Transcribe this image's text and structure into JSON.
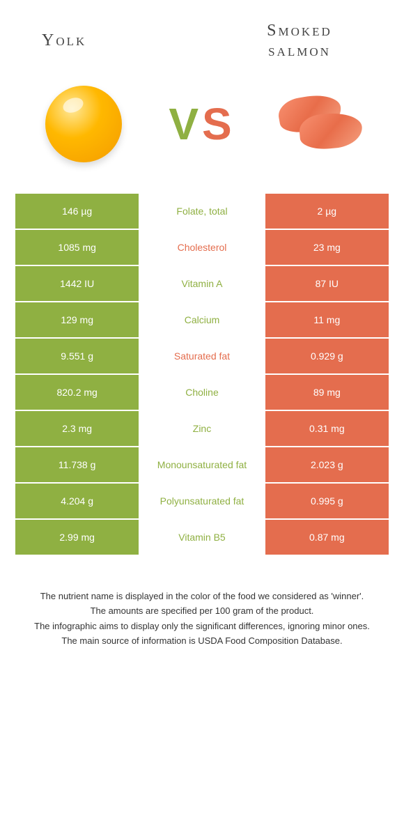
{
  "header": {
    "left_title": "Yolk",
    "right_title": "Smoked salmon",
    "vs_v": "V",
    "vs_s": "S"
  },
  "colors": {
    "green": "#8fb042",
    "orange": "#e46d4e",
    "white": "#ffffff"
  },
  "table": {
    "rows": [
      {
        "left": "146 µg",
        "mid": "Folate, total",
        "winner": "green",
        "right": "2 µg"
      },
      {
        "left": "1085 mg",
        "mid": "Cholesterol",
        "winner": "orange",
        "right": "23 mg"
      },
      {
        "left": "1442 IU",
        "mid": "Vitamin A",
        "winner": "green",
        "right": "87 IU"
      },
      {
        "left": "129 mg",
        "mid": "Calcium",
        "winner": "green",
        "right": "11 mg"
      },
      {
        "left": "9.551 g",
        "mid": "Saturated fat",
        "winner": "orange",
        "right": "0.929 g"
      },
      {
        "left": "820.2 mg",
        "mid": "Choline",
        "winner": "green",
        "right": "89 mg"
      },
      {
        "left": "2.3 mg",
        "mid": "Zinc",
        "winner": "green",
        "right": "0.31 mg"
      },
      {
        "left": "11.738 g",
        "mid": "Monounsaturated fat",
        "winner": "green",
        "right": "2.023 g"
      },
      {
        "left": "4.204 g",
        "mid": "Polyunsaturated fat",
        "winner": "green",
        "right": "0.995 g"
      },
      {
        "left": "2.99 mg",
        "mid": "Vitamin B5",
        "winner": "green",
        "right": "0.87 mg"
      }
    ]
  },
  "footer": {
    "line1": "The nutrient name is displayed in the color of the food we considered as 'winner'.",
    "line2": "The amounts are specified per 100 gram of the product.",
    "line3": "The infographic aims to display only the significant differences, ignoring minor ones.",
    "line4": "The main source of information is USDA Food Composition Database."
  }
}
